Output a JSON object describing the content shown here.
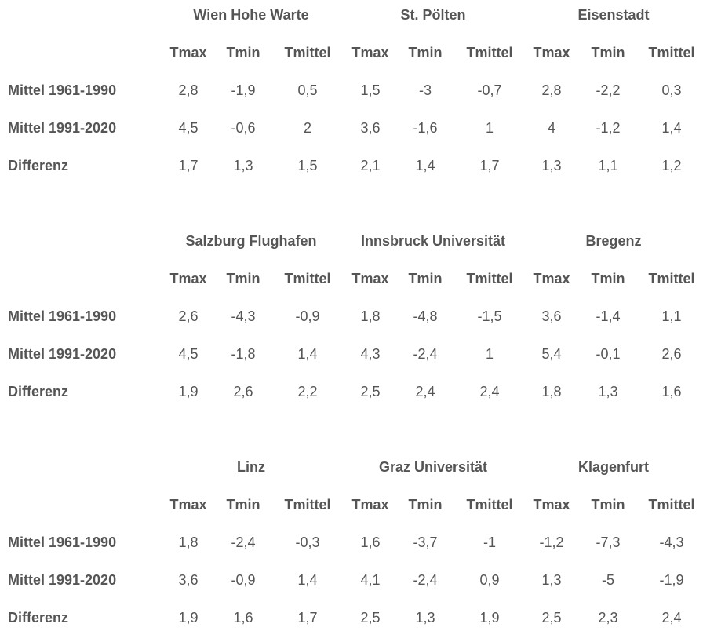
{
  "headers": [
    "Tmax",
    "Tmin",
    "Tmittel",
    "Tmax",
    "Tmin",
    "Tmittel",
    "Tmax",
    "Tmin",
    "Tmittel"
  ],
  "row_labels": [
    "Mittel 1961-1990",
    "Mittel 1991-2020",
    "Differenz"
  ],
  "blocks": [
    {
      "stations": [
        "Wien Hohe Warte",
        "St. Pölten",
        "Eisenstadt"
      ],
      "rows": [
        [
          "2,8",
          "-1,9",
          "0,5",
          "1,5",
          "-3",
          "-0,7",
          "2,8",
          "-2,2",
          "0,3"
        ],
        [
          "4,5",
          "-0,6",
          "2",
          "3,6",
          "-1,6",
          "1",
          "4",
          "-1,2",
          "1,4"
        ],
        [
          "1,7",
          "1,3",
          "1,5",
          "2,1",
          "1,4",
          "1,7",
          "1,3",
          "1,1",
          "1,2"
        ]
      ]
    },
    {
      "stations": [
        "Salzburg Flughafen",
        "Innsbruck Universität",
        "Bregenz"
      ],
      "rows": [
        [
          "2,6",
          "-4,3",
          "-0,9",
          "1,8",
          "-4,8",
          "-1,5",
          "3,6",
          "-1,4",
          "1,1"
        ],
        [
          "4,5",
          "-1,8",
          "1,4",
          "4,3",
          "-2,4",
          "1",
          "5,4",
          "-0,1",
          "2,6"
        ],
        [
          "1,9",
          "2,6",
          "2,2",
          "2,5",
          "2,4",
          "2,4",
          "1,8",
          "1,3",
          "1,6"
        ]
      ]
    },
    {
      "stations": [
        "Linz",
        "Graz Universität",
        "Klagenfurt"
      ],
      "rows": [
        [
          "1,8",
          "-2,4",
          "-0,3",
          "1,6",
          "-3,7",
          "-1",
          "-1,2",
          "-7,3",
          "-4,3"
        ],
        [
          "3,6",
          "-0,9",
          "1,4",
          "4,1",
          "-2,4",
          "0,9",
          "1,3",
          "-5",
          "-1,9"
        ],
        [
          "1,9",
          "1,6",
          "1,7",
          "2,5",
          "1,3",
          "1,9",
          "2,5",
          "2,3",
          "2,4"
        ]
      ]
    }
  ]
}
